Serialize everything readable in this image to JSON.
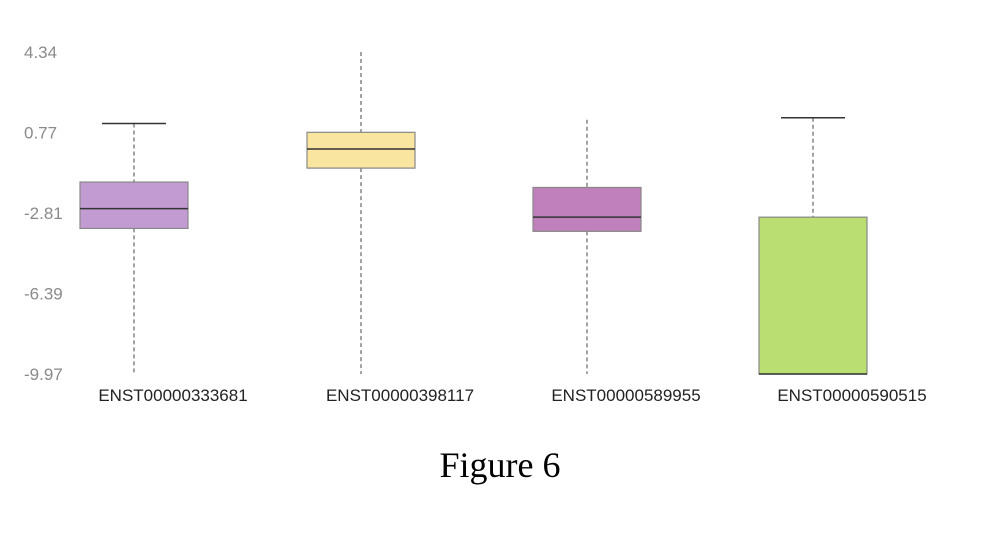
{
  "caption": "Figure 6",
  "chart_data": {
    "type": "box",
    "title": "",
    "xlabel": "",
    "ylabel": "",
    "ylim": [
      -9.97,
      4.34
    ],
    "yticks": [
      "4.34",
      "0.77",
      "-2.81",
      "-6.39",
      "-9.97"
    ],
    "grid": false,
    "categories": [
      "ENST00000333681",
      "ENST00000398117",
      "ENST00000589955",
      "ENST00000590515"
    ],
    "boxes": [
      {
        "category": "ENST00000333681",
        "whisker_low": -9.97,
        "q1": -3.5,
        "median": -2.62,
        "q3": -1.44,
        "whisker_high": 1.16,
        "whisker_high_cap": true,
        "whisker_low_cap": false,
        "color": "#c39bd3"
      },
      {
        "category": "ENST00000398117",
        "whisker_low": -9.97,
        "q1": -0.82,
        "median": 0.03,
        "q3": 0.77,
        "whisker_high": 4.34,
        "whisker_high_cap": false,
        "whisker_low_cap": false,
        "color": "#fae5a0"
      },
      {
        "category": "ENST00000589955",
        "whisker_low": -9.97,
        "q1": -3.63,
        "median": -3.0,
        "q3": -1.68,
        "whisker_high": 1.33,
        "whisker_high_cap": false,
        "whisker_low_cap": false,
        "color": "#c080bb"
      },
      {
        "category": "ENST00000590515",
        "whisker_low": -9.97,
        "q1": -9.97,
        "median": -9.97,
        "q3": -3.0,
        "whisker_high": 1.42,
        "whisker_high_cap": true,
        "whisker_low_cap": false,
        "color": "#bade72"
      }
    ]
  }
}
